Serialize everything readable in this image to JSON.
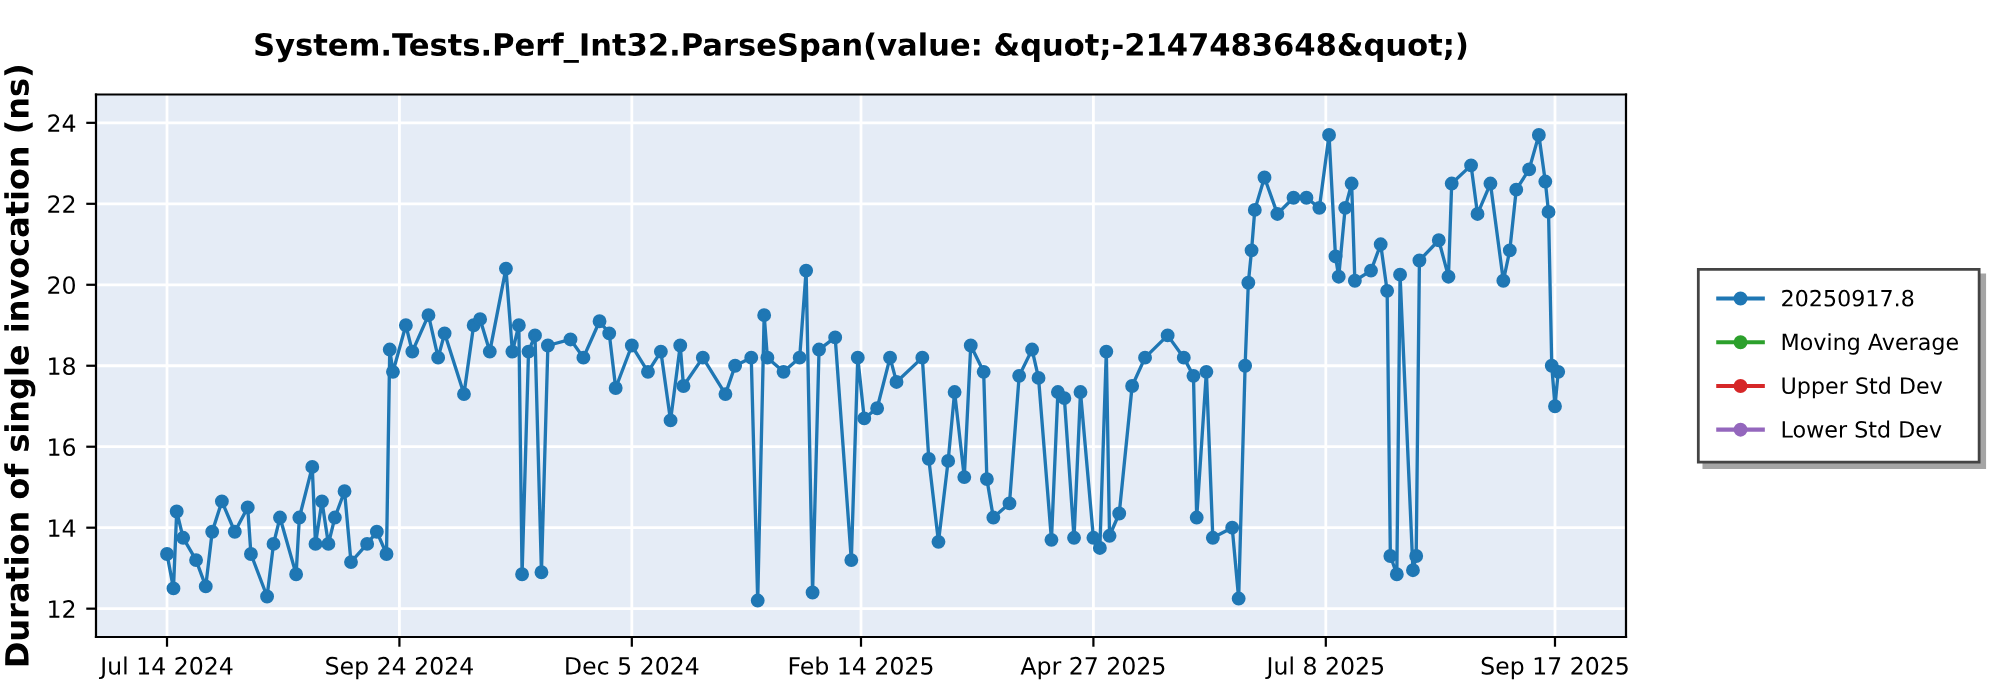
{
  "chart_data": {
    "type": "line",
    "title": "System.Tests.Perf_Int32.ParseSpan(value: &quot;-2147483648&quot;)",
    "ylabel": "Duration of single invocation (ns)",
    "series": [
      {
        "name": "20250917.8",
        "color": "#1f77b4",
        "x": [
          "2024-07-14",
          "2024-07-16",
          "2024-07-17",
          "2024-07-19",
          "2024-07-23",
          "2024-07-26",
          "2024-07-28",
          "2024-07-31",
          "2024-08-04",
          "2024-08-08",
          "2024-08-09",
          "2024-08-14",
          "2024-08-16",
          "2024-08-18",
          "2024-08-23",
          "2024-08-24",
          "2024-08-28",
          "2024-08-29",
          "2024-08-31",
          "2024-09-02",
          "2024-09-04",
          "2024-09-07",
          "2024-09-09",
          "2024-09-14",
          "2024-09-17",
          "2024-09-20",
          "2024-09-21",
          "2024-09-22",
          "2024-09-26",
          "2024-09-28",
          "2024-10-03",
          "2024-10-06",
          "2024-10-08",
          "2024-10-14",
          "2024-10-17",
          "2024-10-19",
          "2024-10-22",
          "2024-10-27",
          "2024-10-29",
          "2024-10-31",
          "2024-11-01",
          "2024-11-03",
          "2024-11-05",
          "2024-11-07",
          "2024-11-09",
          "2024-11-16",
          "2024-11-20",
          "2024-11-25",
          "2024-11-28",
          "2024-11-30",
          "2024-12-05",
          "2024-12-10",
          "2024-12-14",
          "2024-12-17",
          "2024-12-20",
          "2024-12-21",
          "2024-12-27",
          "2025-01-03",
          "2025-01-06",
          "2025-01-11",
          "2025-01-13",
          "2025-01-15",
          "2025-01-16",
          "2025-01-21",
          "2025-01-26",
          "2025-01-28",
          "2025-01-30",
          "2025-02-01",
          "2025-02-06",
          "2025-02-11",
          "2025-02-13",
          "2025-02-15",
          "2025-02-19",
          "2025-02-23",
          "2025-02-25",
          "2025-03-05",
          "2025-03-07",
          "2025-03-10",
          "2025-03-13",
          "2025-03-15",
          "2025-03-18",
          "2025-03-20",
          "2025-03-24",
          "2025-03-25",
          "2025-03-27",
          "2025-04-01",
          "2025-04-04",
          "2025-04-08",
          "2025-04-10",
          "2025-04-14",
          "2025-04-16",
          "2025-04-18",
          "2025-04-21",
          "2025-04-23",
          "2025-04-27",
          "2025-04-29",
          "2025-05-01",
          "2025-05-02",
          "2025-05-05",
          "2025-05-09",
          "2025-05-13",
          "2025-05-20",
          "2025-05-25",
          "2025-05-28",
          "2025-05-29",
          "2025-06-01",
          "2025-06-03",
          "2025-06-09",
          "2025-06-11",
          "2025-06-13",
          "2025-06-14",
          "2025-06-15",
          "2025-06-16",
          "2025-06-19",
          "2025-06-23",
          "2025-06-28",
          "2025-07-02",
          "2025-07-06",
          "2025-07-09",
          "2025-07-11",
          "2025-07-12",
          "2025-07-14",
          "2025-07-16",
          "2025-07-17",
          "2025-07-22",
          "2025-07-25",
          "2025-07-27",
          "2025-07-28",
          "2025-07-30",
          "2025-07-31",
          "2025-08-04",
          "2025-08-05",
          "2025-08-06",
          "2025-08-12",
          "2025-08-15",
          "2025-08-16",
          "2025-08-22",
          "2025-08-24",
          "2025-08-28",
          "2025-09-01",
          "2025-09-03",
          "2025-09-05",
          "2025-09-09",
          "2025-09-12",
          "2025-09-14",
          "2025-09-15",
          "2025-09-16",
          "2025-09-17",
          "2025-09-18"
        ],
        "values": [
          13.35,
          12.5,
          14.4,
          13.75,
          13.2,
          12.55,
          13.9,
          14.65,
          13.9,
          14.5,
          13.35,
          12.3,
          13.6,
          14.25,
          12.85,
          14.25,
          15.5,
          13.6,
          14.65,
          13.6,
          14.25,
          14.9,
          13.15,
          13.6,
          13.9,
          13.35,
          18.4,
          17.85,
          19.0,
          18.35,
          19.25,
          18.2,
          18.8,
          17.3,
          19.0,
          19.15,
          18.35,
          20.4,
          18.35,
          19.0,
          12.85,
          18.35,
          18.75,
          12.9,
          18.5,
          18.65,
          18.2,
          19.1,
          18.8,
          17.45,
          18.5,
          17.85,
          18.35,
          16.65,
          18.5,
          17.5,
          18.2,
          17.3,
          18.0,
          18.2,
          12.2,
          19.25,
          18.2,
          17.85,
          18.2,
          20.35,
          12.4,
          18.4,
          18.7,
          13.2,
          18.2,
          16.7,
          16.95,
          18.2,
          17.6,
          18.2,
          15.7,
          13.65,
          15.65,
          17.35,
          15.25,
          18.5,
          17.85,
          15.2,
          14.25,
          14.6,
          17.75,
          18.4,
          17.7,
          13.7,
          17.35,
          17.2,
          13.75,
          17.35,
          13.75,
          13.5,
          18.35,
          13.8,
          14.35,
          17.5,
          18.2,
          18.75,
          18.2,
          17.75,
          14.25,
          17.85,
          13.75,
          14.0,
          12.25,
          18.0,
          20.05,
          20.85,
          21.85,
          22.65,
          21.75,
          22.15,
          22.15,
          21.9,
          23.7,
          20.7,
          20.2,
          21.9,
          22.5,
          20.1,
          20.35,
          21.0,
          19.85,
          13.3,
          12.85,
          20.25,
          12.95,
          13.3,
          20.6,
          21.1,
          20.2,
          22.5,
          22.95,
          21.75,
          22.5,
          20.1,
          20.85,
          22.35,
          22.85,
          23.7,
          22.55,
          21.8,
          18.0,
          17.0,
          17.85
        ]
      },
      {
        "name": "Moving Average",
        "color": "#2ca02c"
      },
      {
        "name": "Upper Std Dev",
        "color": "#d62728"
      },
      {
        "name": "Lower Std Dev",
        "color": "#9467bd"
      }
    ],
    "xlim": [
      "2024-06-22",
      "2025-10-09"
    ],
    "xticks": [
      {
        "value": "2024-07-14",
        "label": "Jul 14 2024"
      },
      {
        "value": "2024-09-24",
        "label": "Sep 24 2024"
      },
      {
        "value": "2024-12-05",
        "label": "Dec 5 2024"
      },
      {
        "value": "2025-02-14",
        "label": "Feb 14 2025"
      },
      {
        "value": "2025-04-27",
        "label": "Apr 27 2025"
      },
      {
        "value": "2025-07-08",
        "label": "Jul 8 2025"
      },
      {
        "value": "2025-09-17",
        "label": "Sep 17 2025"
      }
    ],
    "ylim": [
      11.3,
      24.7
    ],
    "yticks": [
      12,
      14,
      16,
      18,
      20,
      22,
      24
    ],
    "grid": true,
    "legend": "right",
    "marker": "circle",
    "line_style": "solid"
  }
}
